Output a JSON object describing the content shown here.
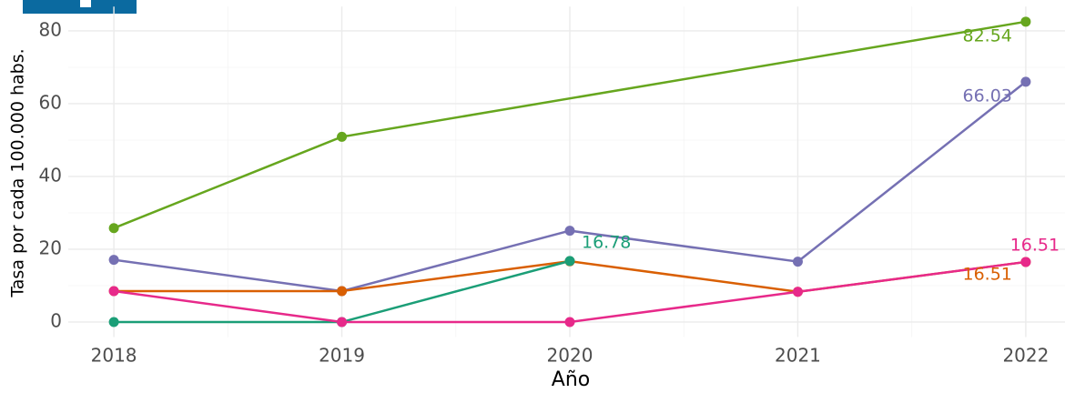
{
  "chart_data": {
    "type": "line",
    "x_label": "Año",
    "y_label": "Tasa por cada 100.000 habs.",
    "xlim": [
      2017.8,
      2022.2
    ],
    "xticks": [
      2018,
      2019,
      2020,
      2021,
      2022
    ],
    "xticks_minor": [
      2018.5,
      2019.5,
      2020.5,
      2021.5
    ],
    "ylim": [
      -4.13,
      86.67
    ],
    "yticks": [
      0,
      20,
      40,
      60,
      80
    ],
    "yticks_minor": [
      10,
      30,
      50,
      70
    ],
    "grid": true,
    "series": [
      {
        "color": "#66a61e",
        "x": [
          2018,
          2019,
          2022
        ],
        "values": [
          25.8,
          50.9,
          82.54
        ]
      },
      {
        "color": "#7570b3",
        "x": [
          2018,
          2019,
          2020,
          2021,
          2022
        ],
        "values": [
          17.1,
          8.5,
          25.1,
          16.6,
          66.03
        ]
      },
      {
        "color": "#d95f02",
        "x": [
          2018,
          2019,
          2020,
          2021,
          2022
        ],
        "values": [
          8.5,
          8.5,
          16.7,
          8.3,
          16.51
        ]
      },
      {
        "color": "#1b9e77",
        "x": [
          2018,
          2019,
          2020
        ],
        "values": [
          0,
          0,
          16.78
        ]
      },
      {
        "color": "#e7298a",
        "x": [
          2018,
          2019,
          2020,
          2021,
          2022
        ],
        "values": [
          8.5,
          0,
          0,
          8.3,
          16.51
        ]
      }
    ]
  }
}
